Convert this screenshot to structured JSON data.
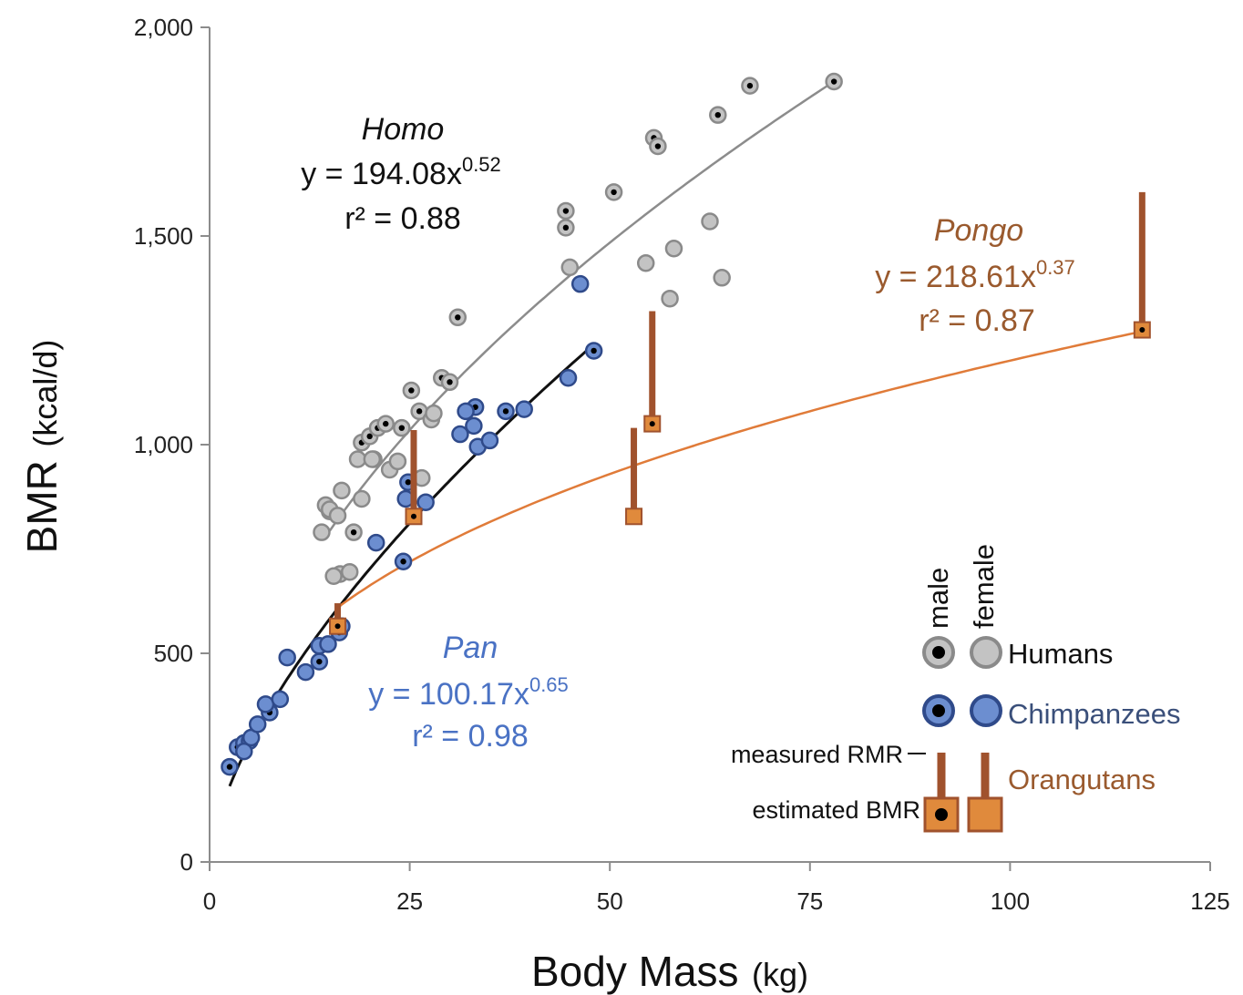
{
  "chart_data": {
    "type": "scatter",
    "xlabel": "Body Mass",
    "xlabel_unit": "(kg)",
    "ylabel": "BMR",
    "ylabel_unit": "(kcal/d)",
    "xlim": [
      0,
      125
    ],
    "ylim": [
      0,
      2000
    ],
    "x_ticks": [
      0,
      25,
      50,
      75,
      100,
      125
    ],
    "x_tick_labels": [
      "0",
      "25",
      "50",
      "75",
      "100",
      "125"
    ],
    "y_ticks": [
      0,
      500,
      1000,
      1500,
      2000
    ],
    "y_tick_labels": [
      "0",
      "500",
      "1,000",
      "1,500",
      "2,000"
    ],
    "grid": false,
    "colors": {
      "human_ring": "#8a8a8a",
      "human_fill": "#c3c3c3",
      "chimp_ring": "#2f4a8a",
      "chimp_fill": "#6c8ed0",
      "orang_bar": "#a0522d",
      "orang_fill": "#e08a3c",
      "orang_fit": "#e07b39",
      "homo_text": "#111111",
      "pan_text": "#4a72c4",
      "pongo_text": "#9a5a2e"
    },
    "series": [
      {
        "name": "Humans",
        "sex": "male",
        "points": [
          [
            15,
            840
          ],
          [
            16.3,
            690
          ],
          [
            18,
            790
          ],
          [
            19,
            1005
          ],
          [
            20,
            1020
          ],
          [
            21,
            1040
          ],
          [
            22,
            1050
          ],
          [
            24,
            1040
          ],
          [
            25.2,
            1130
          ],
          [
            26.2,
            1080
          ],
          [
            29,
            1160
          ],
          [
            30,
            1150
          ],
          [
            31,
            1305
          ],
          [
            44.5,
            1560
          ],
          [
            44.5,
            1520
          ],
          [
            50.5,
            1605
          ],
          [
            55.5,
            1735
          ],
          [
            56,
            1715
          ],
          [
            63.5,
            1790
          ],
          [
            67.5,
            1860
          ],
          [
            78,
            1870
          ],
          [
            20.5,
            965
          ]
        ]
      },
      {
        "name": "Humans",
        "sex": "female",
        "points": [
          [
            14,
            790
          ],
          [
            14.5,
            855
          ],
          [
            15,
            845
          ],
          [
            15.5,
            685
          ],
          [
            16,
            830
          ],
          [
            16.5,
            890
          ],
          [
            17.5,
            695
          ],
          [
            18.5,
            965
          ],
          [
            19,
            870
          ],
          [
            20.3,
            965
          ],
          [
            22.5,
            940
          ],
          [
            23.5,
            960
          ],
          [
            26.5,
            920
          ],
          [
            27.7,
            1060
          ],
          [
            28,
            1075
          ],
          [
            45,
            1425
          ],
          [
            54.5,
            1435
          ],
          [
            57.5,
            1350
          ],
          [
            58,
            1470
          ],
          [
            62.5,
            1535
          ],
          [
            64,
            1400
          ]
        ]
      },
      {
        "name": "Chimpanzees",
        "sex": "male",
        "points": [
          [
            2.5,
            228
          ],
          [
            3.5,
            275
          ],
          [
            4.3,
            285
          ],
          [
            5,
            290
          ],
          [
            7.5,
            358
          ],
          [
            13.7,
            480
          ],
          [
            16.2,
            550
          ],
          [
            24.2,
            720
          ],
          [
            24.8,
            910
          ],
          [
            33.2,
            1090
          ],
          [
            37,
            1080
          ],
          [
            48,
            1225
          ]
        ]
      },
      {
        "name": "Chimpanzees",
        "sex": "female",
        "points": [
          [
            4.3,
            265
          ],
          [
            5.2,
            298
          ],
          [
            6,
            330
          ],
          [
            7,
            378
          ],
          [
            8.8,
            390
          ],
          [
            9.7,
            490
          ],
          [
            12,
            455
          ],
          [
            13.7,
            518
          ],
          [
            14.8,
            522
          ],
          [
            16.5,
            565
          ],
          [
            20.8,
            765
          ],
          [
            24.5,
            870
          ],
          [
            27,
            862
          ],
          [
            31.3,
            1025
          ],
          [
            32,
            1080
          ],
          [
            33,
            1045
          ],
          [
            33.5,
            995
          ],
          [
            35,
            1010
          ],
          [
            39.3,
            1085
          ],
          [
            44.8,
            1160
          ],
          [
            46.3,
            1385
          ]
        ]
      },
      {
        "name": "Orangutans",
        "points": [
          {
            "x": 16,
            "bmr": 565,
            "rmr": 620,
            "sex": "male"
          },
          {
            "x": 25.5,
            "bmr": 828,
            "rmr": 1035,
            "sex": "male"
          },
          {
            "x": 53,
            "bmr": 828,
            "rmr": 1040,
            "sex": "female"
          },
          {
            "x": 55.3,
            "bmr": 1050,
            "rmr": 1320,
            "sex": "male"
          },
          {
            "x": 116.5,
            "bmr": 1275,
            "rmr": 1605,
            "sex": "male"
          }
        ]
      }
    ],
    "fits": [
      {
        "name": "Homo",
        "a": 194.08,
        "b": 0.52,
        "x_range": [
          15,
          78
        ],
        "color": "#8c8c8c"
      },
      {
        "name": "Pan",
        "a": 100.17,
        "b": 0.65,
        "x_range": [
          2.5,
          48
        ],
        "color": "#111111"
      },
      {
        "name": "Pongo",
        "a": 218.61,
        "b": 0.37,
        "x_range": [
          16,
          116.5
        ],
        "color": "#e07b39"
      }
    ],
    "annotations": {
      "homo": {
        "name": "Homo",
        "eq_prefix": "y = 194.08x",
        "exponent": "0.52",
        "r2": "r² = 0.88"
      },
      "pan": {
        "name": "Pan",
        "eq_prefix": "y = 100.17x",
        "exponent": "0.65",
        "r2": "r² = 0.98"
      },
      "pongo": {
        "name": "Pongo",
        "eq_prefix": "y = 218.61x",
        "exponent": "0.37",
        "r2": "r² = 0.87"
      }
    },
    "legend": {
      "male_label": "male",
      "female_label": "female",
      "humans": "Humans",
      "chimpanzees": "Chimpanzees",
      "orangutans": "Orangutans",
      "measured": "measured RMR",
      "estimated": "estimated BMR",
      "placement": "bottom-right"
    }
  }
}
